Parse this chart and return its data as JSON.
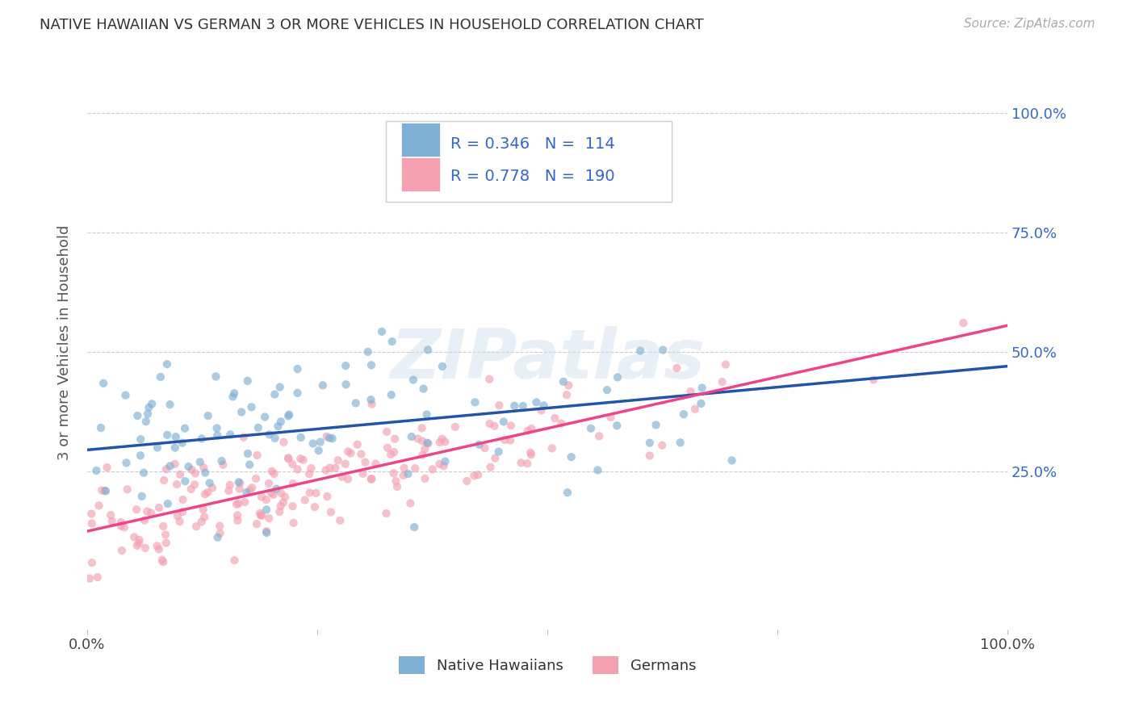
{
  "title": "NATIVE HAWAIIAN VS GERMAN 3 OR MORE VEHICLES IN HOUSEHOLD CORRELATION CHART",
  "source": "Source: ZipAtlas.com",
  "ylabel": "3 or more Vehicles in Household",
  "ytick_labels": [
    "25.0%",
    "50.0%",
    "75.0%",
    "100.0%"
  ],
  "ytick_values": [
    0.25,
    0.5,
    0.75,
    1.0
  ],
  "xlim": [
    0.0,
    1.0
  ],
  "ylim": [
    -0.08,
    1.12
  ],
  "legend_label1": "Native Hawaiians",
  "legend_label2": "Germans",
  "color_blue": "#7EB0D5",
  "color_pink": "#F4A0B0",
  "color_blue_line": "#2255AA",
  "color_pink_line": "#EE4488",
  "color_legend_text": "#3366CC",
  "scatter_alpha": 0.65,
  "marker_size": 55,
  "background_color": "#ffffff",
  "watermark_text": "ZIPatlas",
  "R_blue": 0.346,
  "N_blue": 114,
  "R_pink": 0.778,
  "N_pink": 190,
  "blue_slope": 0.175,
  "blue_intercept": 0.295,
  "pink_slope": 0.43,
  "pink_intercept": 0.125
}
